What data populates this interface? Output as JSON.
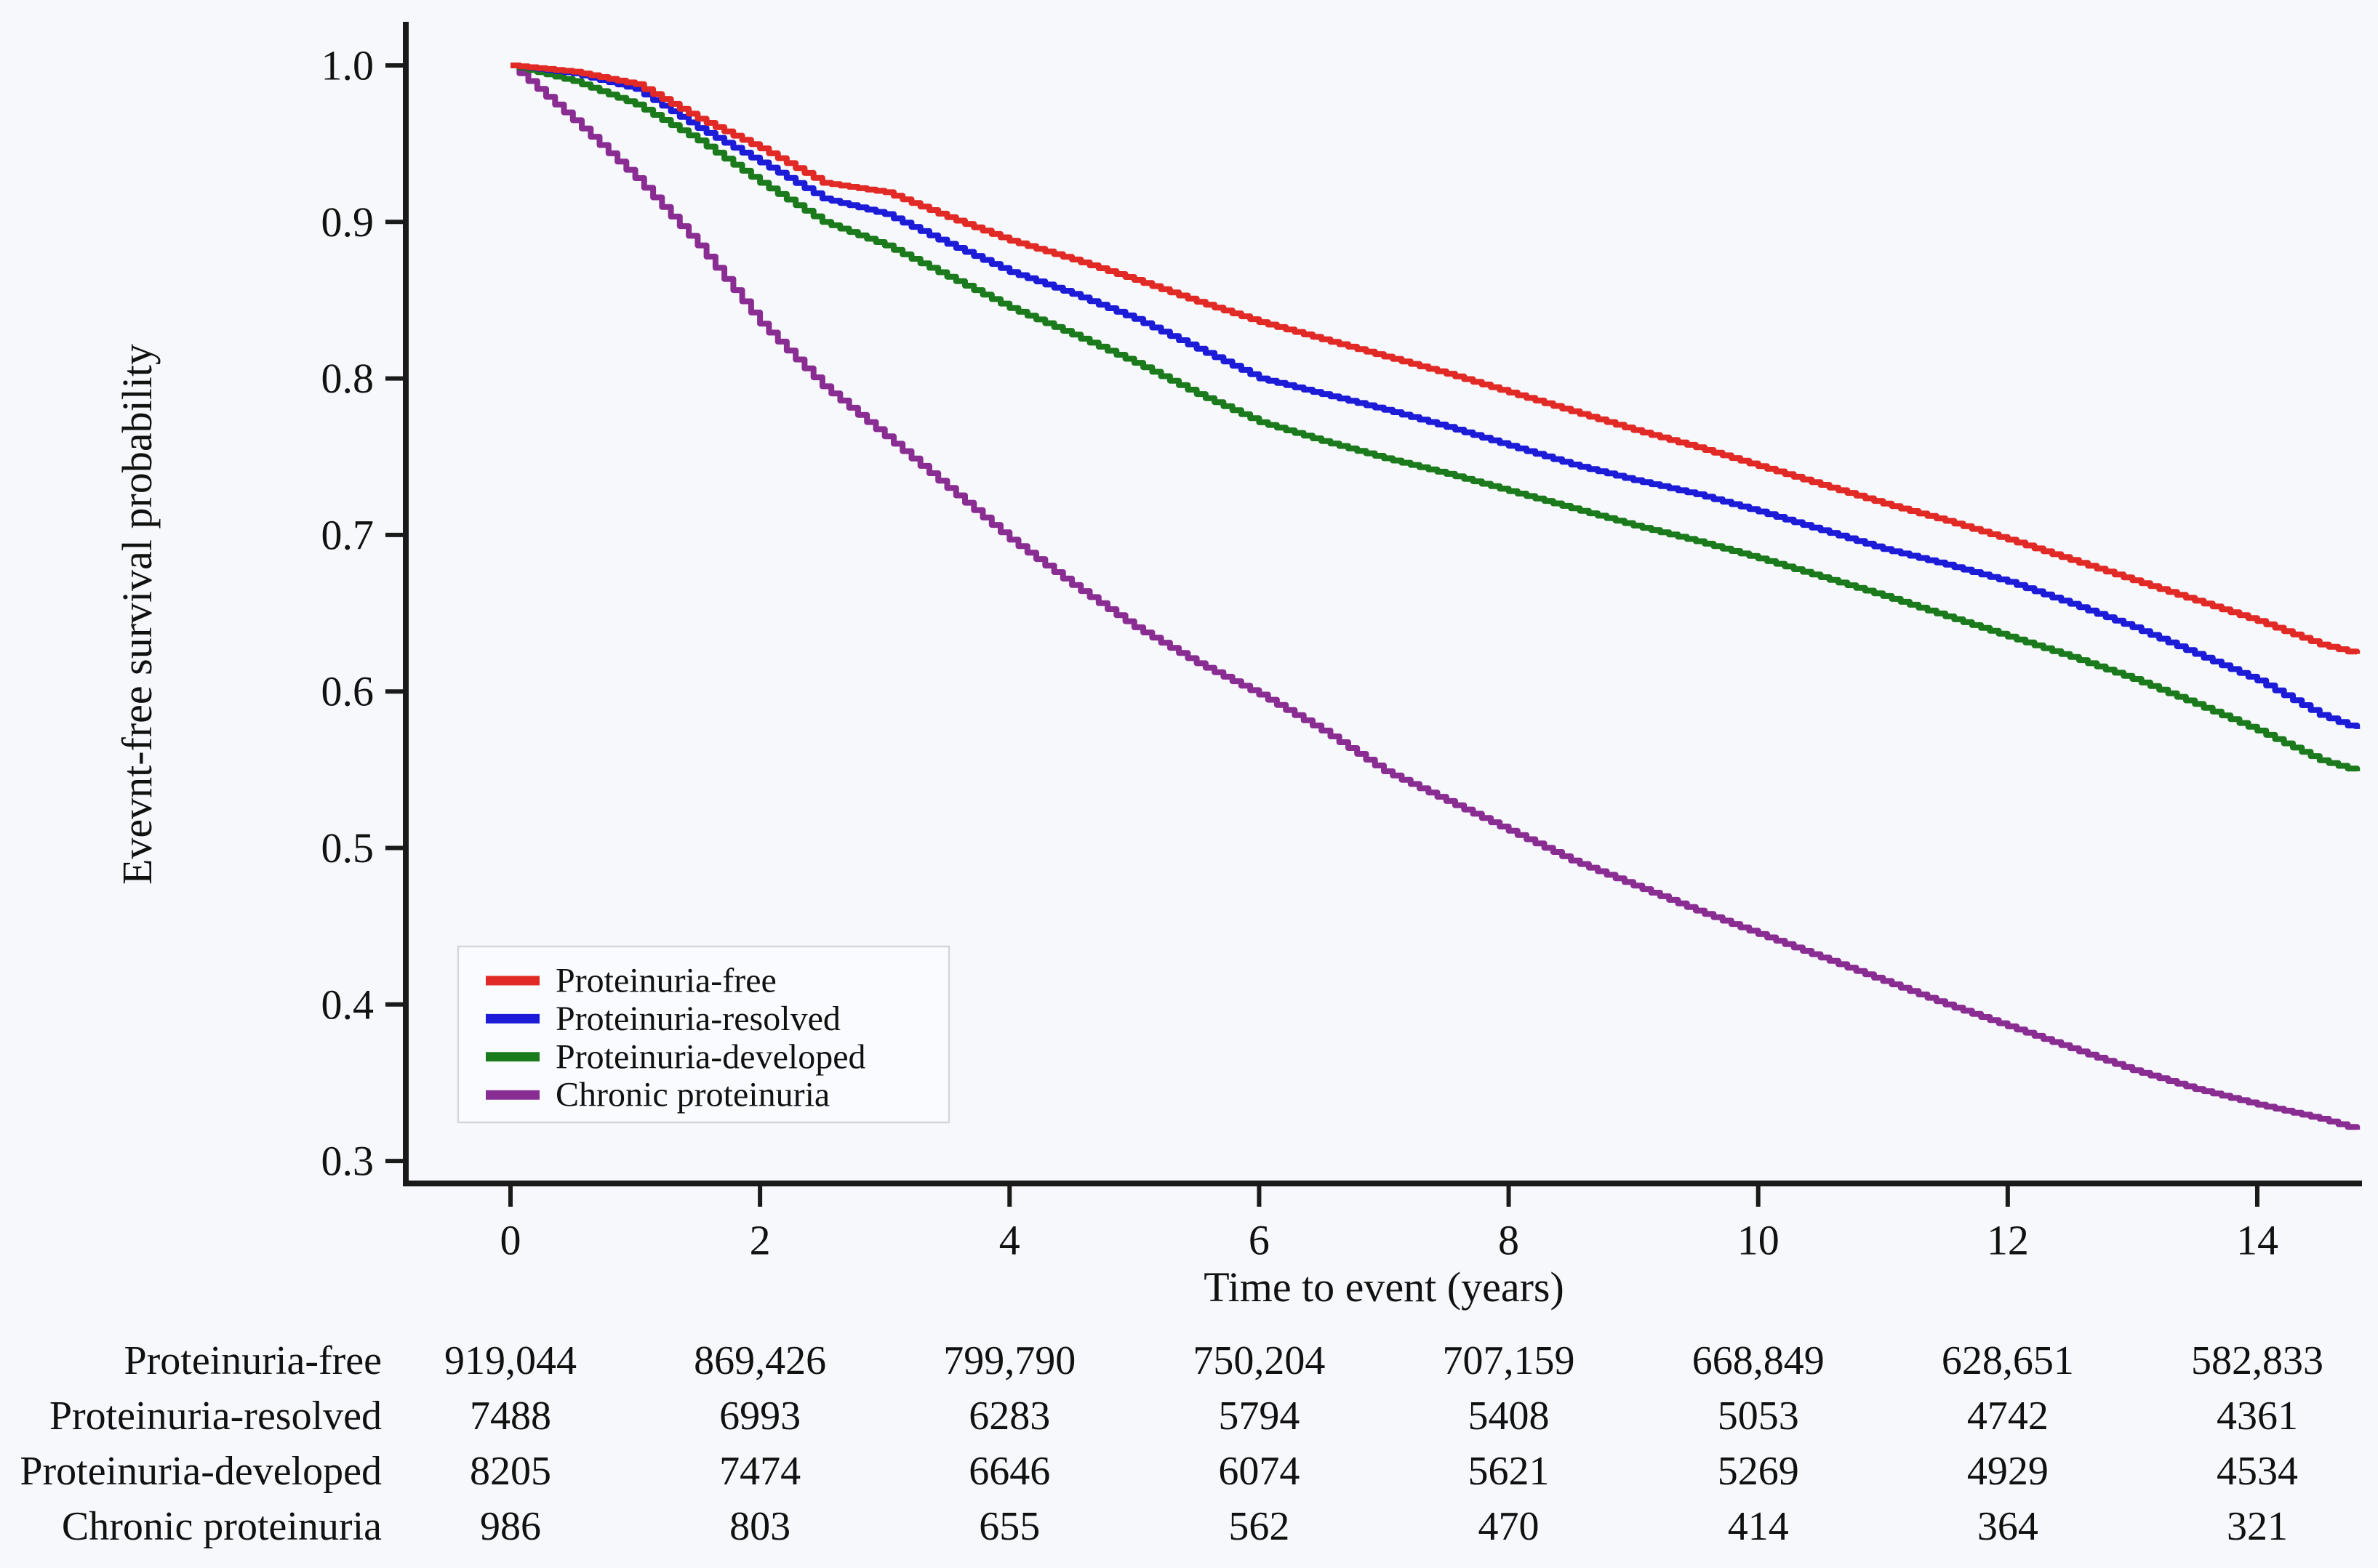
{
  "figure": {
    "background": "#f7f8fc",
    "axis_color": "#1a1a1a",
    "text_color": "#111111",
    "legend_fill": "#fafbfe",
    "legend_border": "#d6d6da"
  },
  "chart_data": {
    "type": "line",
    "subtype": "kaplan-meier-step",
    "title": "",
    "xlabel": "Time to event (years)",
    "ylabel": "Evevnt-free survival probability",
    "xlim": [
      0,
      14.8
    ],
    "ylim": [
      0.3,
      1.0
    ],
    "grid": false,
    "legend_position": "inside-lower-left",
    "xtick_values": [
      0,
      2,
      4,
      6,
      8,
      10,
      12,
      14
    ],
    "xtick_labels": [
      "0",
      "2",
      "4",
      "6",
      "8",
      "10",
      "12",
      "14"
    ],
    "ytick_values": [
      1.0,
      0.9,
      0.8,
      0.7,
      0.6,
      0.5,
      0.4,
      0.3
    ],
    "ytick_labels": [
      "1.0",
      "0.9",
      "0.8",
      "0.7",
      "0.6",
      "0.5",
      "0.4",
      "0.3"
    ],
    "x": [
      0,
      0.5,
      1,
      1.5,
      2,
      2.5,
      3,
      3.5,
      4,
      4.5,
      5,
      5.5,
      6,
      6.5,
      7,
      7.5,
      8,
      8.5,
      9,
      9.5,
      10,
      10.5,
      11,
      11.5,
      12,
      12.5,
      13,
      13.5,
      14,
      14.5,
      14.8
    ],
    "series": [
      {
        "name": "Proteinuria-free",
        "color": "#e12a26",
        "values": [
          1.0,
          0.996,
          0.988,
          0.966,
          0.947,
          0.925,
          0.919,
          0.903,
          0.888,
          0.876,
          0.863,
          0.849,
          0.836,
          0.825,
          0.814,
          0.803,
          0.791,
          0.779,
          0.767,
          0.756,
          0.744,
          0.732,
          0.72,
          0.709,
          0.697,
          0.684,
          0.671,
          0.658,
          0.645,
          0.63,
          0.624
        ]
      },
      {
        "name": "Proteinuria-resolved",
        "color": "#1b1bd8",
        "values": [
          1.0,
          0.995,
          0.985,
          0.96,
          0.938,
          0.915,
          0.905,
          0.886,
          0.868,
          0.854,
          0.838,
          0.819,
          0.8,
          0.79,
          0.78,
          0.769,
          0.757,
          0.745,
          0.735,
          0.726,
          0.715,
          0.703,
          0.691,
          0.681,
          0.67,
          0.656,
          0.641,
          0.624,
          0.607,
          0.585,
          0.576
        ]
      },
      {
        "name": "Proteinuria-developed",
        "color": "#1b7a1b",
        "values": [
          1.0,
          0.99,
          0.975,
          0.952,
          0.925,
          0.9,
          0.885,
          0.865,
          0.845,
          0.828,
          0.81,
          0.79,
          0.772,
          0.76,
          0.749,
          0.739,
          0.728,
          0.717,
          0.706,
          0.696,
          0.685,
          0.673,
          0.661,
          0.648,
          0.635,
          0.622,
          0.608,
          0.592,
          0.575,
          0.556,
          0.549
        ]
      },
      {
        "name": "Chronic proteinuria",
        "color": "#8a2d93",
        "values": [
          1.0,
          0.965,
          0.928,
          0.885,
          0.835,
          0.795,
          0.763,
          0.73,
          0.697,
          0.668,
          0.641,
          0.618,
          0.598,
          0.575,
          0.549,
          0.53,
          0.511,
          0.492,
          0.476,
          0.46,
          0.445,
          0.43,
          0.415,
          0.4,
          0.386,
          0.372,
          0.358,
          0.346,
          0.336,
          0.327,
          0.32
        ]
      }
    ]
  },
  "risk_table": {
    "time_points": [
      0,
      2,
      4,
      6,
      8,
      10,
      12,
      14
    ],
    "rows": [
      {
        "label": "Proteinuria-free",
        "counts": [
          "919,044",
          "869,426",
          "799,790",
          "750,204",
          "707,159",
          "668,849",
          "628,651",
          "582,833"
        ]
      },
      {
        "label": "Proteinuria-resolved",
        "counts": [
          "7488",
          "6993",
          "6283",
          "5794",
          "5408",
          "5053",
          "4742",
          "4361"
        ]
      },
      {
        "label": "Proteinuria-developed",
        "counts": [
          "8205",
          "7474",
          "6646",
          "6074",
          "5621",
          "5269",
          "4929",
          "4534"
        ]
      },
      {
        "label": "Chronic proteinuria",
        "counts": [
          "986",
          "803",
          "655",
          "562",
          "470",
          "414",
          "364",
          "321"
        ]
      }
    ]
  }
}
